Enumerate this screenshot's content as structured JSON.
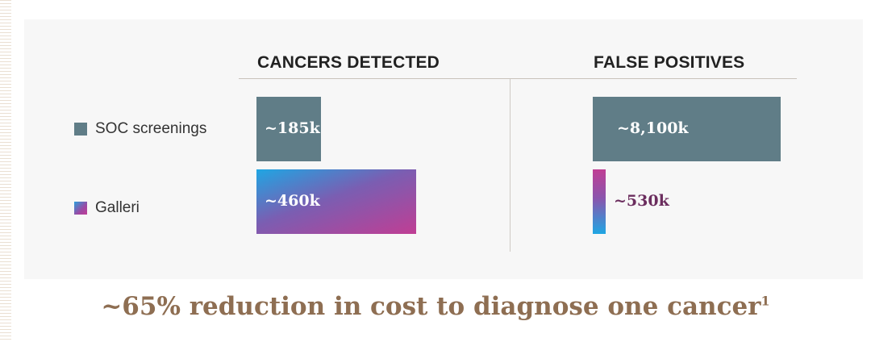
{
  "chart_data": {
    "type": "bar",
    "panels": [
      {
        "title": "CANCERS DETECTED",
        "series": [
          {
            "name": "SOC screenings",
            "value": 185000,
            "label": "~185k"
          },
          {
            "name": "Galleri",
            "value": 460000,
            "label": "~460k"
          }
        ]
      },
      {
        "title": "FALSE POSITIVES",
        "series": [
          {
            "name": "SOC screenings",
            "value": 8100000,
            "label": "~8,100k"
          },
          {
            "name": "Galleri",
            "value": 530000,
            "label": "~530k"
          }
        ]
      }
    ],
    "legend": [
      "SOC screenings",
      "Galleri"
    ],
    "legend_placement": "left",
    "grid": false
  },
  "colors": {
    "soc": "#607d87",
    "galleri_start": "#1fa6e3",
    "galleri_end": "#c03e94",
    "footer": "#8e6e52",
    "label_dark": "#6b2d5e"
  },
  "footer": {
    "text": "~65% reduction in cost to diagnose one cancer",
    "sup": "1"
  }
}
